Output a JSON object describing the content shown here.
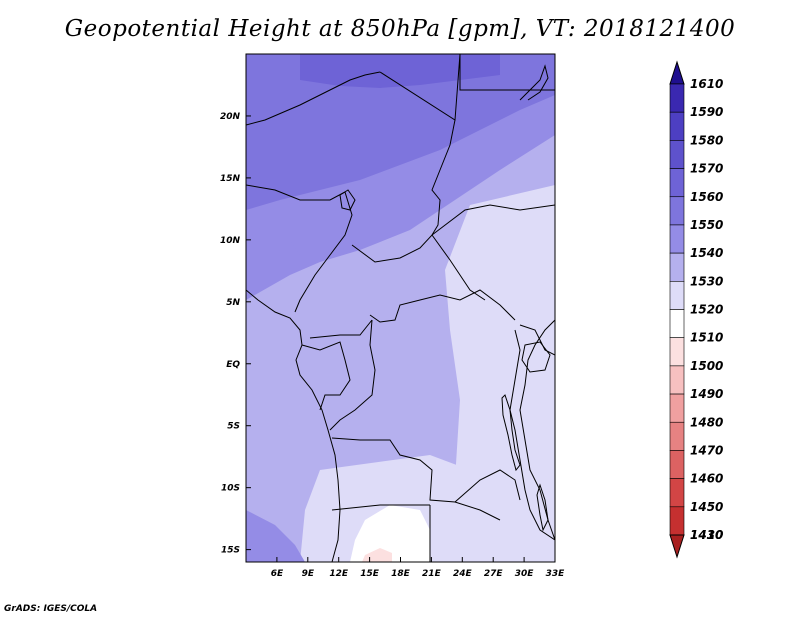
{
  "title": "Geopotential Height at 850hPa [gpm], VT: 2018121400",
  "credit": "GrADS: IGES/COLA",
  "map": {
    "lon_range": [
      3,
      33
    ],
    "lat_range": [
      -16,
      25
    ],
    "x_ticks": [
      "6E",
      "9E",
      "12E",
      "15E",
      "18E",
      "21E",
      "24E",
      "27E",
      "30E",
      "33E"
    ],
    "x_tick_values": [
      6,
      9,
      12,
      15,
      18,
      21,
      24,
      27,
      30,
      33
    ],
    "y_ticks": [
      "20N",
      "15N",
      "10N",
      "5N",
      "EQ",
      "5S",
      "10S",
      "15S"
    ],
    "y_tick_values": [
      20,
      15,
      10,
      5,
      0,
      -5,
      -10,
      -15
    ]
  },
  "colorbar": {
    "levels": [
      "1610",
      "1590",
      "1580",
      "1570",
      "1560",
      "1550",
      "1540",
      "1530",
      "1520",
      "1510",
      "1500",
      "1490",
      "1480",
      "1470",
      "1460",
      "1450",
      "1430",
      "1410"
    ],
    "colors": [
      "#1f0f8f",
      "#3a28b0",
      "#4d3fc2",
      "#5e52cc",
      "#6e63d6",
      "#7e75dd",
      "#948ce6",
      "#b5b0ee",
      "#dedcf8",
      "#ffffff",
      "#fce0e0",
      "#f7c0c0",
      "#f0a0a0",
      "#e68282",
      "#dc6262",
      "#d24545",
      "#c53030",
      "#a82020"
    ]
  }
}
